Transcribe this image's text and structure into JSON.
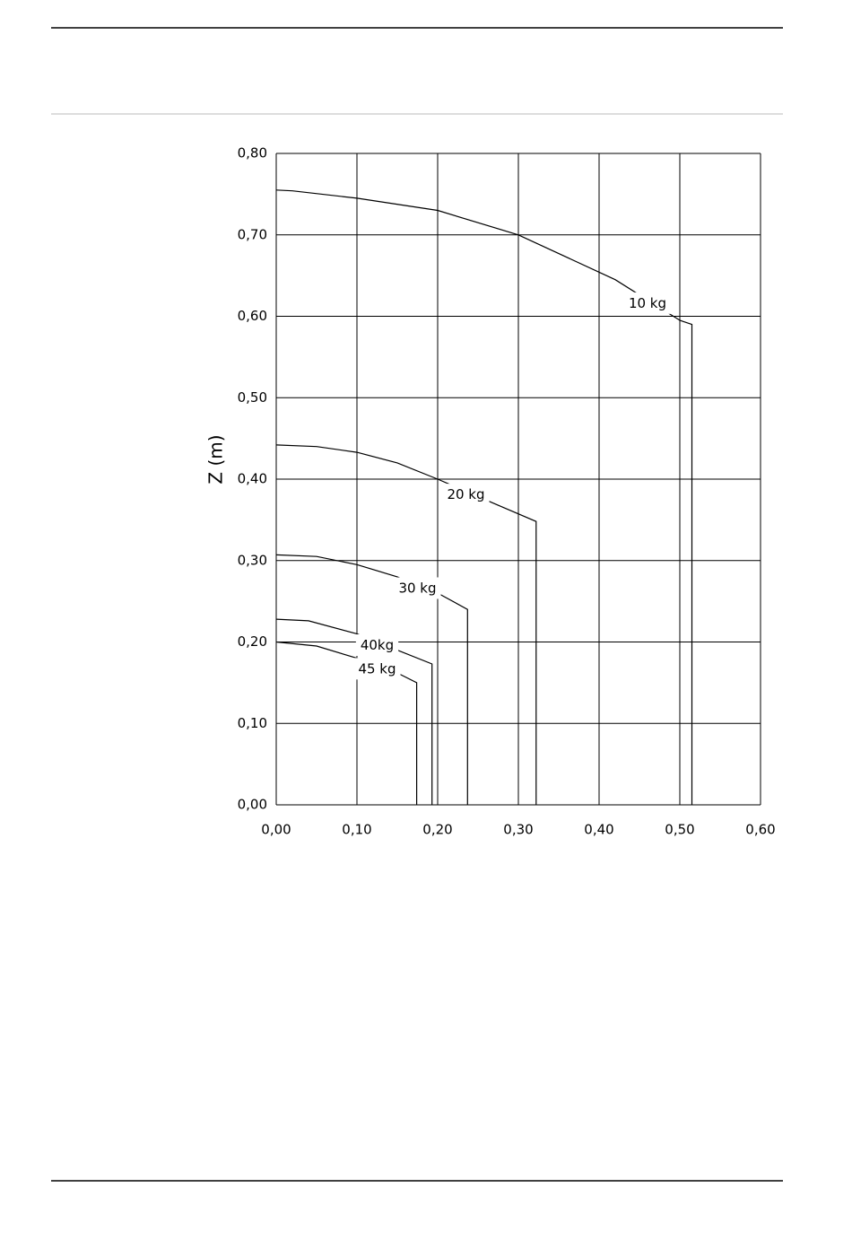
{
  "chart_data": {
    "type": "line",
    "y_label": "Z (m)",
    "xlim": [
      0,
      0.6
    ],
    "ylim": [
      0,
      0.8
    ],
    "grid": true,
    "xticks": [
      {
        "value": 0,
        "label": "0,00"
      },
      {
        "value": 0.1,
        "label": "0,10"
      },
      {
        "value": 0.2,
        "label": "0,20"
      },
      {
        "value": 0.3,
        "label": "0,30"
      },
      {
        "value": 0.4,
        "label": "0,40"
      },
      {
        "value": 0.5,
        "label": "0,50"
      },
      {
        "value": 0.6,
        "label": "0,60"
      }
    ],
    "yticks": [
      {
        "value": 0,
        "label": "0,00"
      },
      {
        "value": 0.1,
        "label": "0,10"
      },
      {
        "value": 0.2,
        "label": "0,20"
      },
      {
        "value": 0.3,
        "label": "0,30"
      },
      {
        "value": 0.4,
        "label": "0,40"
      },
      {
        "value": 0.5,
        "label": "0,50"
      },
      {
        "value": 0.6,
        "label": "0,60"
      },
      {
        "value": 0.7,
        "label": "0,70"
      },
      {
        "value": 0.8,
        "label": "0,80"
      }
    ],
    "series": [
      {
        "name": "10 kg",
        "color": "#000000",
        "x": [
          0,
          0.02,
          0.1,
          0.2,
          0.3,
          0.42,
          0.5,
          0.515,
          0.515
        ],
        "values": [
          0.755,
          0.754,
          0.745,
          0.73,
          0.7,
          0.645,
          0.595,
          0.59,
          0
        ]
      },
      {
        "name": "20 kg",
        "color": "#000000",
        "x": [
          0,
          0.05,
          0.1,
          0.15,
          0.2,
          0.27,
          0.322,
          0.322
        ],
        "values": [
          0.442,
          0.44,
          0.433,
          0.42,
          0.4,
          0.37,
          0.348,
          0
        ]
      },
      {
        "name": "30 kg",
        "color": "#000000",
        "x": [
          0,
          0.05,
          0.1,
          0.15,
          0.2,
          0.237,
          0.237
        ],
        "values": [
          0.307,
          0.305,
          0.295,
          0.28,
          0.26,
          0.24,
          0
        ]
      },
      {
        "name": "40kg",
        "color": "#000000",
        "x": [
          0,
          0.04,
          0.1,
          0.15,
          0.193,
          0.193
        ],
        "values": [
          0.228,
          0.226,
          0.21,
          0.19,
          0.173,
          0
        ]
      },
      {
        "name": "45 kg",
        "color": "#000000",
        "x": [
          0,
          0.05,
          0.1,
          0.15,
          0.174,
          0.174
        ],
        "values": [
          0.2,
          0.195,
          0.18,
          0.162,
          0.15,
          0
        ]
      }
    ]
  }
}
